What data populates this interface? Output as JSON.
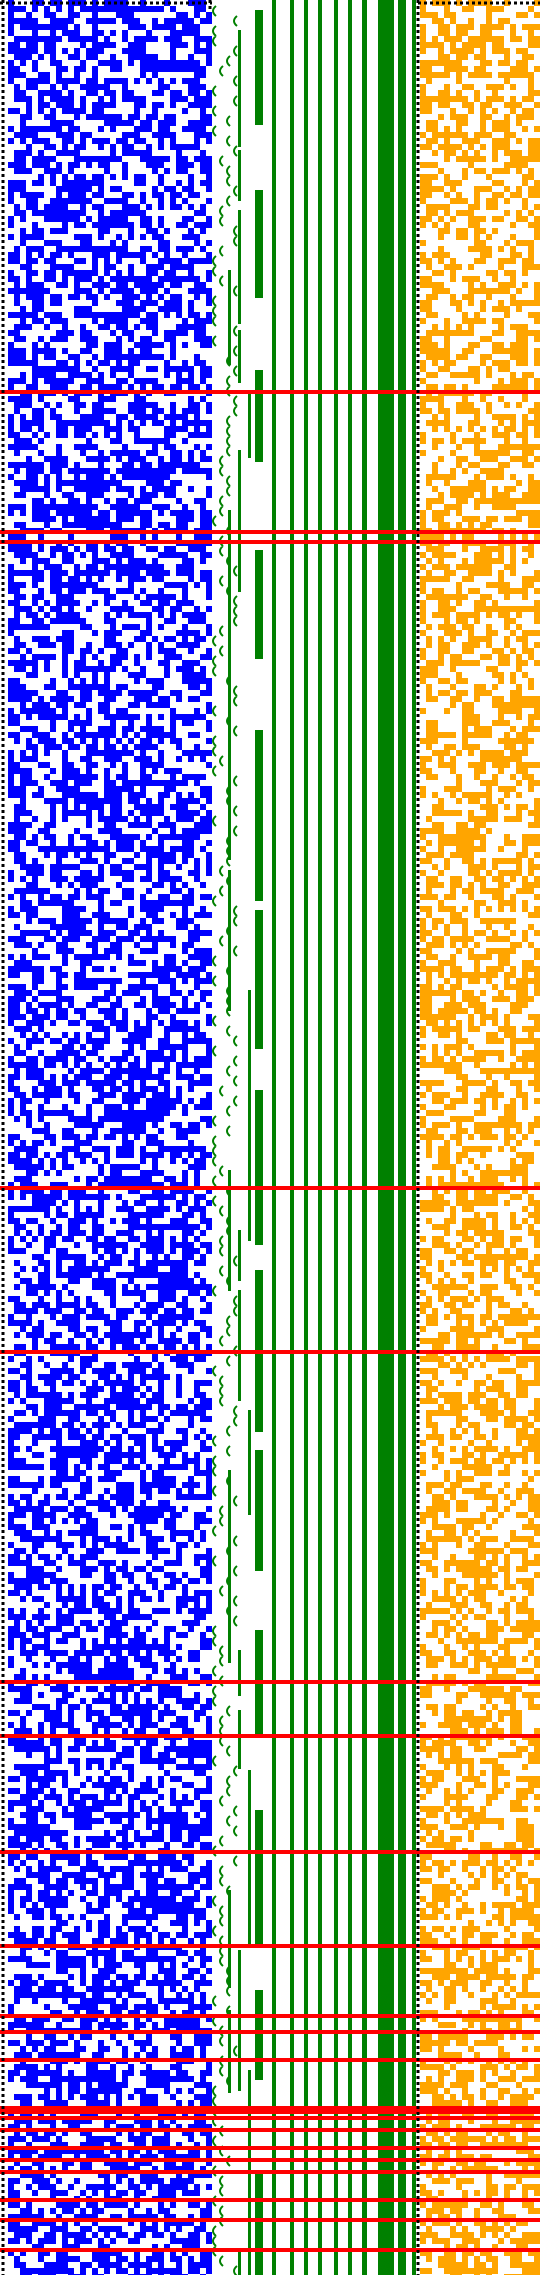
{
  "colors": {
    "background": "#ffffff",
    "blue_cells": "#0000ff",
    "green_lines": "#008000",
    "orange_cells": "#ffa500",
    "red_lines": "#ff0000",
    "dotted_border": "#000000"
  },
  "regions": [
    {
      "id": "blue-pixel-block",
      "color": "blue_cells",
      "fill_density": 0.55
    },
    {
      "id": "green-bracket-tree",
      "color": "green_lines"
    },
    {
      "id": "green-bar-stack",
      "color": "green_lines"
    },
    {
      "id": "orange-pixel-block",
      "color": "orange_cells",
      "fill_density": 0.5
    }
  ],
  "red_line_count": 22
}
